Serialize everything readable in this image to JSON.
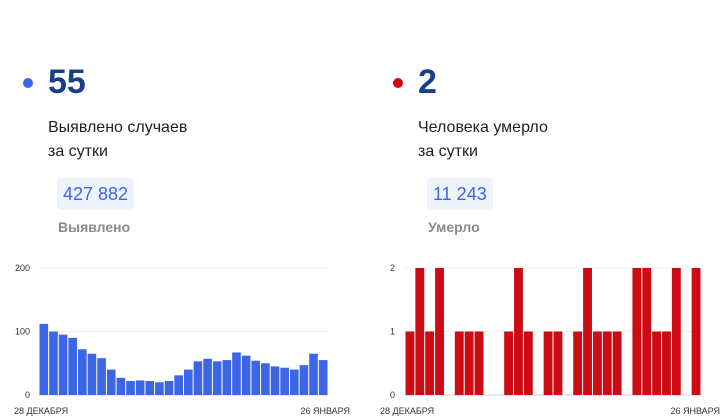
{
  "cases": {
    "value": "55",
    "caption_line1": "Выявлено случаев",
    "caption_line2": "за сутки",
    "total": "427 882",
    "total_label": "Выявлено",
    "color": "#3d66e6",
    "dot_color": "#3d66e6",
    "total_color": "#3d66e6"
  },
  "deaths": {
    "value": "2",
    "caption_line1": "Человека умерло",
    "caption_line2": "за сутки",
    "total": "11 243",
    "total_label": "Умерло",
    "color": "#cc0b14",
    "dot_color": "#cc0b14",
    "total_color": "#3d66e6"
  },
  "chart_data": [
    {
      "type": "bar",
      "title": "",
      "xlabel": "",
      "ylabel": "",
      "x_start_label": "28 ДЕКАБРЯ",
      "x_end_label": "26 ЯНВАРЯ",
      "yticks": [
        0,
        100,
        200
      ],
      "ylim": [
        0,
        200
      ],
      "grid": true,
      "values": [
        112,
        100,
        95,
        90,
        72,
        65,
        58,
        40,
        27,
        22,
        23,
        22,
        20,
        22,
        31,
        40,
        53,
        57,
        53,
        55,
        67,
        62,
        54,
        50,
        45,
        43,
        40,
        47,
        65,
        55
      ],
      "color": "#3d66e6"
    },
    {
      "type": "bar",
      "title": "",
      "xlabel": "",
      "ylabel": "",
      "x_start_label": "28 ДЕКАБРЯ",
      "x_end_label": "26 ЯНВАРЯ",
      "yticks": [
        0,
        1,
        2
      ],
      "ylim": [
        0,
        2
      ],
      "grid": true,
      "values": [
        1,
        2,
        1,
        2,
        0,
        1,
        1,
        1,
        0,
        0,
        1,
        2,
        1,
        0,
        1,
        1,
        0,
        1,
        2,
        1,
        1,
        1,
        0,
        2,
        2,
        1,
        1,
        2,
        0,
        2
      ],
      "color": "#cc0b14"
    }
  ]
}
